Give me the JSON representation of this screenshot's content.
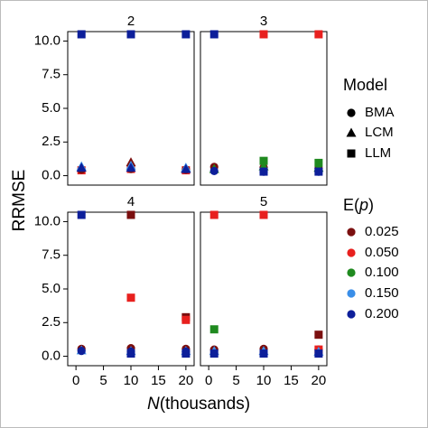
{
  "chart_data": {
    "type": "scatter",
    "ylabel": "RRMSE",
    "xlabel": {
      "symbol": "N",
      "text": "(thousands)"
    },
    "xlim": [
      -1.5,
      21.5
    ],
    "xticks": [
      0,
      5,
      10,
      15,
      20
    ],
    "ylim": [
      -0.7,
      10.7
    ],
    "yticks": [
      {
        "value": 0,
        "label": "0.0"
      },
      {
        "value": 2.5,
        "label": "2.5"
      },
      {
        "value": 5,
        "label": "5.0"
      },
      {
        "value": 7.5,
        "label": "7.5"
      },
      {
        "value": 10,
        "label": "10.0"
      }
    ],
    "legends": [
      {
        "title": [
          "Model"
        ],
        "entries": [
          {
            "name": "BMA",
            "shape": "circle"
          },
          {
            "name": "LCM",
            "shape": "triangle"
          },
          {
            "name": "LLM",
            "shape": "square"
          }
        ]
      },
      {
        "title": [
          "E(",
          "p",
          ")"
        ],
        "entries": [
          {
            "name": "0.025",
            "color": "#7b0f0f"
          },
          {
            "name": "0.050",
            "color": "#e8201e"
          },
          {
            "name": "0.100",
            "color": "#1f8a1f"
          },
          {
            "name": "0.150",
            "color": "#3a8ee8"
          },
          {
            "name": "0.200",
            "color": "#0d1f9a"
          }
        ]
      }
    ],
    "panels": [
      {
        "title": "2",
        "series": [
          {
            "model": 2,
            "ep": 1,
            "x": [
              1,
              10,
              20
            ],
            "values": [
              0.4,
              0.5,
              0.4
            ]
          },
          {
            "model": 0,
            "ep": 0,
            "x": [
              1,
              10,
              20
            ],
            "values": [
              0.45,
              0.5,
              0.45
            ]
          },
          {
            "model": 1,
            "ep": 0,
            "x": [
              1,
              10,
              20
            ],
            "values": [
              0.6,
              1.0,
              0.55
            ]
          },
          {
            "model": 1,
            "ep": 3,
            "x": [
              1,
              10,
              20
            ],
            "values": [
              0.7,
              0.75,
              0.6
            ]
          },
          {
            "model": 1,
            "ep": 4,
            "x": [
              1,
              10,
              20
            ],
            "values": [
              0.6,
              0.6,
              0.5
            ]
          },
          {
            "model": 2,
            "ep": 4,
            "x": [
              1,
              10,
              20
            ],
            "values": [
              10.5,
              10.5,
              10.5
            ]
          }
        ]
      },
      {
        "title": "3",
        "series": [
          {
            "model": 0,
            "ep": 0,
            "x": [
              1,
              10,
              20
            ],
            "values": [
              0.65,
              0.6,
              0.55
            ]
          },
          {
            "model": 2,
            "ep": 2,
            "x": [
              10,
              20
            ],
            "values": [
              1.1,
              0.95
            ]
          },
          {
            "model": 1,
            "ep": 2,
            "x": [
              1,
              10,
              20
            ],
            "values": [
              0.5,
              0.7,
              0.6
            ]
          },
          {
            "model": 2,
            "ep": 1,
            "x": [
              10,
              20
            ],
            "values": [
              10.5,
              10.5
            ]
          },
          {
            "model": 0,
            "ep": 4,
            "x": [
              1,
              10,
              20
            ],
            "values": [
              0.35,
              0.3,
              0.3
            ]
          },
          {
            "model": 2,
            "ep": 4,
            "x": [
              1,
              10,
              20
            ],
            "values": [
              10.5,
              0.3,
              0.3
            ]
          }
        ]
      },
      {
        "title": "4",
        "series": [
          {
            "model": 0,
            "ep": 0,
            "x": [
              1,
              10,
              20
            ],
            "values": [
              0.55,
              0.6,
              0.55
            ]
          },
          {
            "model": 2,
            "ep": 0,
            "x": [
              10,
              20
            ],
            "values": [
              10.5,
              2.9
            ]
          },
          {
            "model": 2,
            "ep": 1,
            "x": [
              10,
              20
            ],
            "values": [
              4.35,
              2.7
            ]
          },
          {
            "model": 1,
            "ep": 3,
            "x": [
              1,
              10,
              20
            ],
            "values": [
              0.45,
              0.4,
              0.4
            ]
          },
          {
            "model": 0,
            "ep": 4,
            "x": [
              1,
              10,
              20
            ],
            "values": [
              0.4,
              0.35,
              0.35
            ]
          },
          {
            "model": 2,
            "ep": 4,
            "x": [
              1,
              10,
              20
            ],
            "values": [
              10.5,
              0.2,
              0.2
            ]
          }
        ]
      },
      {
        "title": "5",
        "series": [
          {
            "model": 0,
            "ep": 0,
            "x": [
              1,
              10,
              20
            ],
            "values": [
              0.5,
              0.55,
              0.5
            ]
          },
          {
            "model": 2,
            "ep": 0,
            "x": [
              20
            ],
            "values": [
              1.6
            ]
          },
          {
            "model": 2,
            "ep": 1,
            "x": [
              1,
              10,
              20
            ],
            "values": [
              10.5,
              10.5,
              0.5
            ]
          },
          {
            "model": 2,
            "ep": 2,
            "x": [
              1
            ],
            "values": [
              2.0
            ]
          },
          {
            "model": 1,
            "ep": 3,
            "x": [
              1,
              10,
              20
            ],
            "values": [
              0.4,
              0.4,
              0.35
            ]
          },
          {
            "model": 2,
            "ep": 4,
            "x": [
              1,
              10,
              20
            ],
            "values": [
              0.2,
              0.2,
              0.2
            ]
          }
        ]
      }
    ]
  }
}
